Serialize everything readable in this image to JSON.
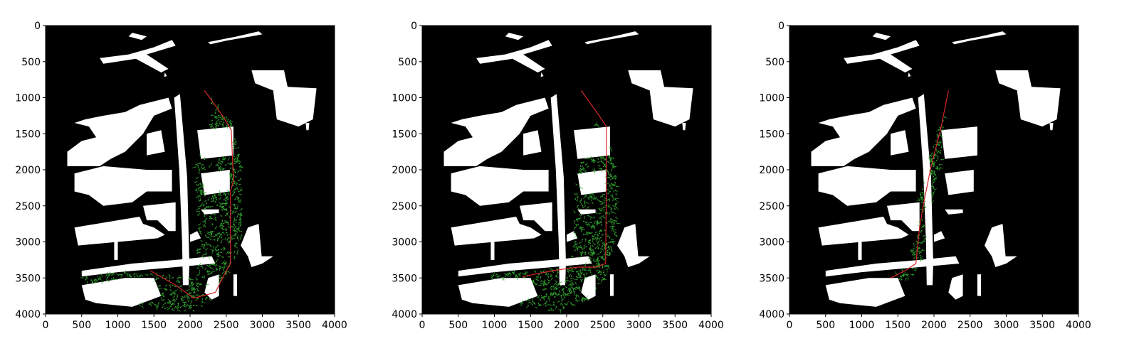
{
  "chart_data": [
    {
      "type": "scatter",
      "title": "",
      "xlabel": "",
      "ylabel": "",
      "xlim": [
        0,
        4000
      ],
      "ylim": [
        4000,
        0
      ],
      "xticks": [
        "0",
        "500",
        "1000",
        "1500",
        "2000",
        "2500",
        "3000",
        "3500",
        "4000"
      ],
      "yticks": [
        "0",
        "500",
        "1000",
        "1500",
        "2000",
        "2500",
        "3000",
        "3500",
        "4000"
      ],
      "grid": false,
      "colors": {
        "background": "#000000",
        "obstacle": "#ffffff",
        "tree": "#2fa02f",
        "path": "#d62728"
      },
      "path": [
        [
          2200,
          900
        ],
        [
          2450,
          1250
        ],
        [
          2570,
          1450
        ],
        [
          2600,
          2150
        ],
        [
          2560,
          2300
        ],
        [
          2560,
          3300
        ],
        [
          2500,
          3400
        ],
        [
          2350,
          3700
        ],
        [
          2050,
          3780
        ],
        [
          1800,
          3600
        ],
        [
          1450,
          3400
        ]
      ],
      "explored_region": [
        [
          2300,
          1000
        ],
        [
          2550,
          1300
        ],
        [
          2650,
          1500
        ],
        [
          2720,
          2000
        ],
        [
          2720,
          2900
        ],
        [
          2650,
          3200
        ],
        [
          2400,
          3650
        ],
        [
          2150,
          3950
        ],
        [
          1700,
          3950
        ],
        [
          1200,
          3900
        ],
        [
          700,
          3700
        ],
        [
          500,
          3500
        ],
        [
          1000,
          3400
        ],
        [
          1600,
          3450
        ],
        [
          2050,
          3500
        ],
        [
          2100,
          3200
        ],
        [
          2100,
          2500
        ],
        [
          2050,
          2000
        ],
        [
          2250,
          1500
        ]
      ]
    },
    {
      "type": "scatter",
      "title": "",
      "xlabel": "",
      "ylabel": "",
      "xlim": [
        0,
        4000
      ],
      "ylim": [
        4000,
        0
      ],
      "xticks": [
        "0",
        "500",
        "1000",
        "1500",
        "2000",
        "2500",
        "3000",
        "3500",
        "4000"
      ],
      "yticks": [
        "0",
        "500",
        "1000",
        "1500",
        "2000",
        "2500",
        "3000",
        "3500",
        "4000"
      ],
      "grid": false,
      "colors": {
        "background": "#000000",
        "obstacle": "#ffffff",
        "tree": "#2fa02f",
        "path": "#d62728"
      },
      "path": [
        [
          2200,
          900
        ],
        [
          2450,
          1250
        ],
        [
          2550,
          1400
        ],
        [
          2550,
          2200
        ],
        [
          2540,
          3300
        ],
        [
          2400,
          3350
        ],
        [
          2150,
          3350
        ],
        [
          1800,
          3400
        ],
        [
          1400,
          3480
        ],
        [
          1400,
          3500
        ]
      ],
      "explored_region": [
        [
          2400,
          1350
        ],
        [
          2600,
          1500
        ],
        [
          2700,
          2100
        ],
        [
          2700,
          2900
        ],
        [
          2550,
          3500
        ],
        [
          2300,
          3800
        ],
        [
          1900,
          3980
        ],
        [
          1400,
          3900
        ],
        [
          1000,
          3800
        ],
        [
          750,
          3600
        ],
        [
          1000,
          3450
        ],
        [
          1500,
          3400
        ],
        [
          2050,
          3350
        ],
        [
          2100,
          3000
        ],
        [
          2100,
          2300
        ],
        [
          2200,
          1900
        ]
      ]
    },
    {
      "type": "scatter",
      "title": "",
      "xlabel": "",
      "ylabel": "",
      "xlim": [
        0,
        4000
      ],
      "ylim": [
        4000,
        0
      ],
      "xticks": [
        "0",
        "500",
        "1000",
        "1500",
        "2000",
        "2500",
        "3000",
        "3500",
        "4000"
      ],
      "yticks": [
        "0",
        "500",
        "1000",
        "1500",
        "2000",
        "2500",
        "3000",
        "3500",
        "4000"
      ],
      "grid": false,
      "colors": {
        "background": "#000000",
        "obstacle": "#ffffff",
        "tree": "#2fa02f",
        "path": "#d62728"
      },
      "path": [
        [
          2200,
          900
        ],
        [
          2100,
          1400
        ],
        [
          1950,
          2000
        ],
        [
          1850,
          2500
        ],
        [
          1800,
          2800
        ],
        [
          1750,
          3300
        ],
        [
          1600,
          3400
        ],
        [
          1400,
          3500
        ]
      ],
      "explored_region": [
        [
          2150,
          1250
        ],
        [
          2100,
          1900
        ],
        [
          2000,
          2400
        ],
        [
          1900,
          2850
        ],
        [
          1850,
          3250
        ],
        [
          1700,
          3500
        ],
        [
          1550,
          3550
        ],
        [
          1450,
          3450
        ],
        [
          1650,
          3300
        ],
        [
          1750,
          2900
        ],
        [
          1800,
          2400
        ],
        [
          1900,
          1900
        ],
        [
          2050,
          1450
        ]
      ]
    }
  ],
  "map": {
    "obstacles": [
      {
        "type": "poly",
        "pts": [
          [
            750,
            450
          ],
          [
            1150,
            400
          ],
          [
            1500,
            300
          ],
          [
            1750,
            200
          ],
          [
            1800,
            280
          ],
          [
            1400,
            400
          ],
          [
            1700,
            600
          ],
          [
            1600,
            650
          ],
          [
            1250,
            460
          ],
          [
            800,
            530
          ]
        ]
      },
      {
        "type": "poly",
        "pts": [
          [
            1200,
            100
          ],
          [
            1400,
            150
          ],
          [
            1330,
            200
          ],
          [
            1150,
            150
          ]
        ]
      },
      {
        "type": "poly",
        "pts": [
          [
            1650,
            650
          ],
          [
            1680,
            700
          ],
          [
            1640,
            710
          ]
        ]
      },
      {
        "type": "poly",
        "pts": [
          [
            2250,
            230
          ],
          [
            2650,
            150
          ],
          [
            2950,
            80
          ],
          [
            3000,
            120
          ],
          [
            2900,
            140
          ],
          [
            2500,
            210
          ],
          [
            2280,
            260
          ]
        ]
      },
      {
        "type": "poly",
        "pts": [
          [
            2850,
            620
          ],
          [
            3300,
            620
          ],
          [
            3350,
            850
          ],
          [
            3750,
            870
          ],
          [
            3700,
            1300
          ],
          [
            3500,
            1400
          ],
          [
            3200,
            1300
          ],
          [
            3150,
            900
          ],
          [
            2900,
            800
          ]
        ]
      },
      {
        "type": "poly",
        "pts": [
          [
            3600,
            1350
          ],
          [
            3650,
            1350
          ],
          [
            3640,
            1450
          ],
          [
            3610,
            1450
          ]
        ]
      },
      {
        "type": "poly",
        "pts": [
          [
            1780,
            1000
          ],
          [
            1860,
            950
          ],
          [
            1960,
            2100
          ],
          [
            1990,
            3300
          ],
          [
            1980,
            3600
          ],
          [
            1900,
            3600
          ],
          [
            1890,
            3000
          ],
          [
            1850,
            2000
          ]
        ]
      },
      {
        "type": "poly",
        "pts": [
          [
            2100,
            1450
          ],
          [
            2600,
            1400
          ],
          [
            2600,
            1800
          ],
          [
            2150,
            1850
          ]
        ]
      },
      {
        "type": "poly",
        "pts": [
          [
            1100,
            1200
          ],
          [
            1300,
            1100
          ],
          [
            1500,
            1050
          ],
          [
            1700,
            1000
          ],
          [
            1750,
            1150
          ],
          [
            1500,
            1250
          ],
          [
            1350,
            1500
          ],
          [
            1100,
            1750
          ],
          [
            900,
            1850
          ],
          [
            750,
            1950
          ],
          [
            300,
            1950
          ],
          [
            300,
            1750
          ],
          [
            500,
            1600
          ],
          [
            700,
            1550
          ],
          [
            600,
            1400
          ],
          [
            400,
            1350
          ],
          [
            550,
            1300
          ],
          [
            800,
            1250
          ]
        ]
      },
      {
        "type": "poly",
        "pts": [
          [
            1400,
            1500
          ],
          [
            1600,
            1450
          ],
          [
            1650,
            1750
          ],
          [
            1400,
            1800
          ]
        ]
      },
      {
        "type": "poly",
        "pts": [
          [
            400,
            2050
          ],
          [
            800,
            1950
          ],
          [
            1400,
            2000
          ],
          [
            1750,
            2000
          ],
          [
            1750,
            2300
          ],
          [
            1400,
            2300
          ],
          [
            1200,
            2450
          ],
          [
            800,
            2500
          ],
          [
            600,
            2350
          ],
          [
            400,
            2300
          ]
        ]
      },
      {
        "type": "poly",
        "pts": [
          [
            1350,
            2500
          ],
          [
            1800,
            2450
          ],
          [
            1800,
            2850
          ],
          [
            1700,
            2850
          ],
          [
            1550,
            2700
          ],
          [
            1400,
            2700
          ]
        ]
      },
      {
        "type": "poly",
        "pts": [
          [
            2150,
            2050
          ],
          [
            2550,
            2000
          ],
          [
            2550,
            2300
          ],
          [
            2200,
            2350
          ]
        ]
      },
      {
        "type": "poly",
        "pts": [
          [
            2150,
            2550
          ],
          [
            2400,
            2550
          ],
          [
            2400,
            2600
          ],
          [
            2200,
            2620
          ]
        ]
      },
      {
        "type": "poly",
        "pts": [
          [
            400,
            2800
          ],
          [
            1300,
            2650
          ],
          [
            1350,
            2750
          ],
          [
            1500,
            2800
          ],
          [
            1650,
            2900
          ],
          [
            1550,
            2950
          ],
          [
            450,
            3050
          ]
        ]
      },
      {
        "type": "poly",
        "pts": [
          [
            950,
            3000
          ],
          [
            1000,
            2980
          ],
          [
            1000,
            3250
          ],
          [
            950,
            3250
          ]
        ]
      },
      {
        "type": "poly",
        "pts": [
          [
            2000,
            2900
          ],
          [
            2100,
            2850
          ],
          [
            2150,
            2950
          ],
          [
            2000,
            3000
          ]
        ]
      },
      {
        "type": "poly",
        "pts": [
          [
            2800,
            2800
          ],
          [
            2950,
            2750
          ],
          [
            3000,
            3300
          ],
          [
            2850,
            3350
          ],
          [
            2800,
            3200
          ],
          [
            2700,
            3050
          ]
        ]
      },
      {
        "type": "poly",
        "pts": [
          [
            2950,
            3200
          ],
          [
            3150,
            3200
          ],
          [
            3000,
            3300
          ]
        ]
      },
      {
        "type": "poly",
        "pts": [
          [
            500,
            3400
          ],
          [
            1200,
            3300
          ],
          [
            1800,
            3250
          ],
          [
            2300,
            3200
          ],
          [
            2350,
            3300
          ],
          [
            1800,
            3350
          ],
          [
            1000,
            3420
          ],
          [
            500,
            3480
          ]
        ]
      },
      {
        "type": "poly",
        "pts": [
          [
            500,
            3600
          ],
          [
            1100,
            3500
          ],
          [
            1500,
            3500
          ],
          [
            1600,
            3750
          ],
          [
            1200,
            3900
          ],
          [
            700,
            3850
          ],
          [
            550,
            3800
          ]
        ]
      },
      {
        "type": "poly",
        "pts": [
          [
            2250,
            3500
          ],
          [
            2400,
            3450
          ],
          [
            2400,
            3750
          ],
          [
            2300,
            3800
          ],
          [
            2200,
            3700
          ]
        ]
      },
      {
        "type": "poly",
        "pts": [
          [
            2600,
            3450
          ],
          [
            2650,
            3450
          ],
          [
            2650,
            3750
          ],
          [
            2600,
            3750
          ]
        ]
      }
    ]
  }
}
